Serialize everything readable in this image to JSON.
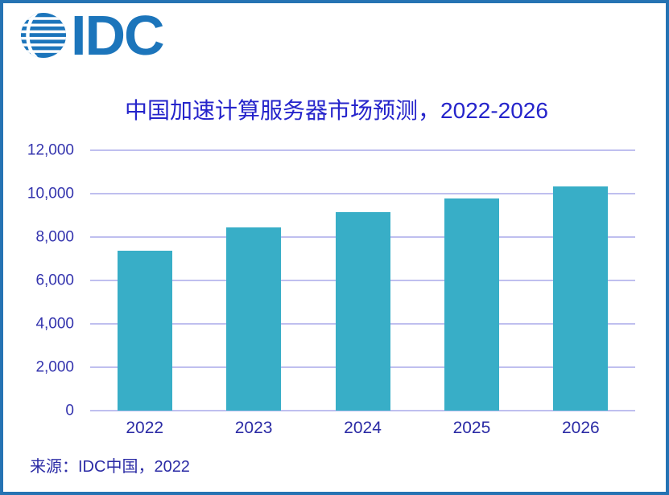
{
  "logo": {
    "text": "IDC",
    "color": "#1C75BB"
  },
  "chart_data": {
    "type": "bar",
    "title": "中国加速计算服务器市场预测，2022-2026",
    "categories": [
      "2022",
      "2023",
      "2024",
      "2025",
      "2026"
    ],
    "values": [
      7380,
      8450,
      9160,
      9770,
      10340
    ],
    "xlabel": "",
    "ylabel": "",
    "ylim": [
      0,
      12000
    ],
    "ytick_labels": [
      "0",
      "2,000",
      "4,000",
      "6,000",
      "8,000",
      "10,000",
      "12,000"
    ],
    "grid": true,
    "legend": false,
    "source": "来源：IDC中国，2022",
    "colors": {
      "bar": "#38AEC7",
      "gridline": "#BFBFEF",
      "title_text": "#2524CB",
      "axis_text": "#3434AE",
      "border": "#2573B3",
      "logo_blue": "#1C75BB"
    }
  }
}
